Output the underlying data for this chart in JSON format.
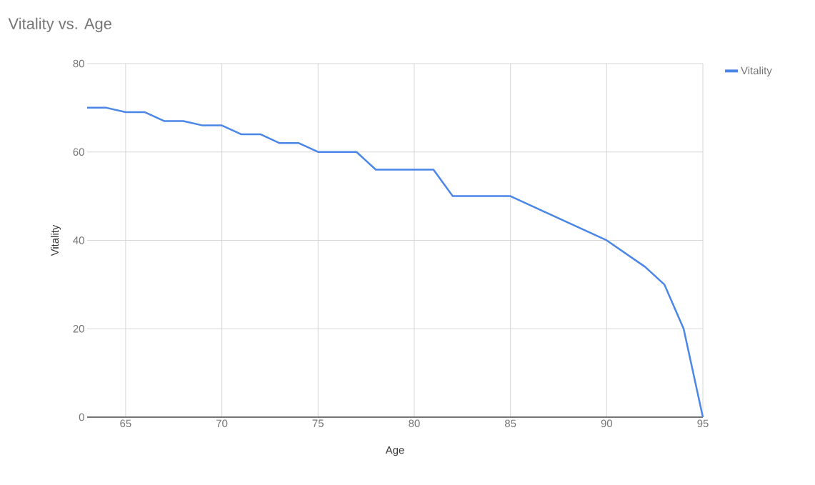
{
  "chart_data": {
    "type": "line",
    "title": "Vitality vs. Age",
    "xlabel": "Age",
    "ylabel": "Vitality",
    "x": [
      63,
      64,
      65,
      66,
      67,
      68,
      69,
      70,
      71,
      72,
      73,
      74,
      75,
      76,
      77,
      78,
      79,
      80,
      81,
      82,
      83,
      84,
      85,
      90,
      92,
      93,
      94,
      95
    ],
    "series": [
      {
        "name": "Vitality",
        "color": "#4a86e8",
        "values": [
          70,
          70,
          69,
          69,
          67,
          67,
          66,
          66,
          64,
          64,
          62,
          62,
          60,
          60,
          60,
          56,
          56,
          56,
          56,
          50,
          50,
          50,
          50,
          40,
          34,
          30,
          20,
          0
        ]
      }
    ],
    "xlim": [
      63,
      95
    ],
    "ylim": [
      0,
      80
    ],
    "xticks": [
      65,
      70,
      75,
      80,
      85,
      90,
      95
    ],
    "yticks": [
      0,
      20,
      40,
      60,
      80
    ],
    "grid": true,
    "legend": "top right",
    "marker": "none",
    "line_style": "solid"
  }
}
